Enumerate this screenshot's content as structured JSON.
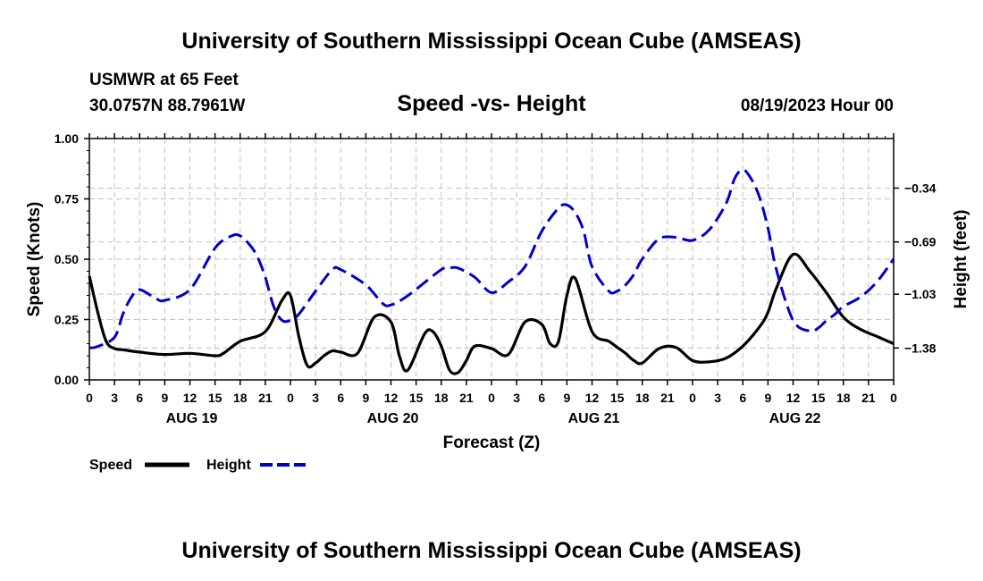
{
  "header": {
    "title": "University of Southern Mississippi Ocean Cube (AMSEAS)",
    "station": "USMWR at 65 Feet",
    "coords": "30.0757N  88.7961W",
    "chart_title": "Speed -vs- Height",
    "datetime": "08/19/2023 Hour 00"
  },
  "legend": {
    "speed_label": "Speed",
    "height_label": "Height"
  },
  "footer": {
    "title": "University of Southern Mississippi Ocean Cube (AMSEAS)"
  },
  "chart_data": {
    "type": "line",
    "title": "Speed -vs- Height",
    "xlabel": "Forecast (Z)",
    "ylabel": "Speed (Knots)",
    "y2label": "Height (feet)",
    "xlim": [
      0,
      96
    ],
    "ylim": [
      0,
      1
    ],
    "y2lim": [
      -1.5875,
      -0.0175
    ],
    "grid": true,
    "x_ticks": [
      0,
      3,
      6,
      9,
      12,
      15,
      18,
      21,
      24,
      27,
      30,
      33,
      36,
      39,
      42,
      45,
      48,
      51,
      54,
      57,
      60,
      63,
      66,
      69,
      72,
      75,
      78,
      81,
      84,
      87,
      90,
      93,
      96
    ],
    "x_tick_labels": [
      "0",
      "3",
      "6",
      "9",
      "12",
      "15",
      "18",
      "21",
      "0",
      "3",
      "6",
      "9",
      "12",
      "15",
      "18",
      "21",
      "0",
      "3",
      "6",
      "9",
      "12",
      "15",
      "18",
      "21",
      "0",
      "3",
      "6",
      "9",
      "12",
      "15",
      "18",
      "21",
      "0"
    ],
    "day_labels": [
      {
        "x": 12,
        "label": "AUG 19"
      },
      {
        "x": 36,
        "label": "AUG 20"
      },
      {
        "x": 60,
        "label": "AUG 21"
      },
      {
        "x": 84,
        "label": "AUG 22"
      }
    ],
    "y_ticks": [
      0,
      0.25,
      0.5,
      0.75,
      1.0
    ],
    "y_tick_labels": [
      "0.00",
      "0.25",
      "0.50",
      "0.75",
      "1.00"
    ],
    "y2_ticks": [
      -1.38,
      -1.03,
      -0.69,
      -0.34
    ],
    "y2_tick_labels": [
      "−1.38",
      "−1.03",
      "−0.69",
      "−0.34"
    ],
    "series": [
      {
        "name": "Speed",
        "axis": "left",
        "color": "#000000",
        "dash": "solid",
        "x": [
          0,
          1,
          2,
          3,
          4,
          6,
          9,
          12,
          15,
          16,
          18,
          21,
          23,
          24,
          25,
          26,
          27,
          28,
          29,
          30,
          32,
          34,
          36,
          37,
          38,
          40,
          41,
          42,
          43,
          44,
          45,
          46,
          48,
          50,
          52,
          54,
          55,
          56,
          57,
          58,
          60,
          62,
          63,
          64,
          65,
          66,
          68,
          70,
          72,
          74,
          76,
          78,
          80,
          81,
          82,
          84,
          86,
          88,
          90,
          92,
          94,
          96
        ],
        "y": [
          0.43,
          0.28,
          0.16,
          0.13,
          0.125,
          0.115,
          0.105,
          0.11,
          0.1,
          0.11,
          0.16,
          0.2,
          0.33,
          0.35,
          0.18,
          0.06,
          0.07,
          0.1,
          0.12,
          0.115,
          0.11,
          0.26,
          0.24,
          0.1,
          0.04,
          0.19,
          0.2,
          0.14,
          0.04,
          0.03,
          0.08,
          0.14,
          0.13,
          0.105,
          0.24,
          0.23,
          0.15,
          0.16,
          0.35,
          0.42,
          0.2,
          0.16,
          0.135,
          0.11,
          0.08,
          0.07,
          0.13,
          0.135,
          0.08,
          0.075,
          0.09,
          0.14,
          0.22,
          0.28,
          0.38,
          0.52,
          0.45,
          0.36,
          0.26,
          0.21,
          0.18,
          0.15
        ]
      },
      {
        "name": "Height",
        "axis": "right",
        "color": "#0000cc",
        "dash": "dashed",
        "x": [
          0,
          1,
          3,
          4,
          5,
          6,
          8,
          9,
          12,
          15,
          17,
          18,
          19,
          20,
          21,
          22,
          23,
          24,
          25,
          27,
          29,
          30,
          33,
          35,
          36,
          38,
          42,
          43,
          44,
          46,
          48,
          50,
          52,
          54,
          56,
          57,
          58,
          59,
          60,
          62,
          63,
          64,
          65,
          66,
          68,
          70,
          72,
          74,
          76,
          77,
          78,
          79,
          80,
          81,
          82,
          84,
          86,
          87,
          88,
          89,
          90,
          92,
          94,
          96
        ],
        "y": [
          -1.38,
          -1.37,
          -1.31,
          -1.16,
          -1.05,
          -1.0,
          -1.06,
          -1.07,
          -1.0,
          -0.73,
          -0.65,
          -0.65,
          -0.7,
          -0.78,
          -0.92,
          -1.11,
          -1.2,
          -1.2,
          -1.16,
          -1.01,
          -0.87,
          -0.87,
          -0.97,
          -1.09,
          -1.1,
          -1.04,
          -0.87,
          -0.86,
          -0.86,
          -0.92,
          -1.02,
          -0.95,
          -0.85,
          -0.62,
          -0.47,
          -0.45,
          -0.5,
          -0.62,
          -0.85,
          -1.01,
          -1.01,
          -0.97,
          -0.9,
          -0.8,
          -0.67,
          -0.66,
          -0.68,
          -0.61,
          -0.44,
          -0.28,
          -0.22,
          -0.28,
          -0.4,
          -0.6,
          -0.87,
          -1.2,
          -1.27,
          -1.25,
          -1.2,
          -1.16,
          -1.11,
          -1.05,
          -0.95,
          -0.8
        ]
      }
    ]
  }
}
